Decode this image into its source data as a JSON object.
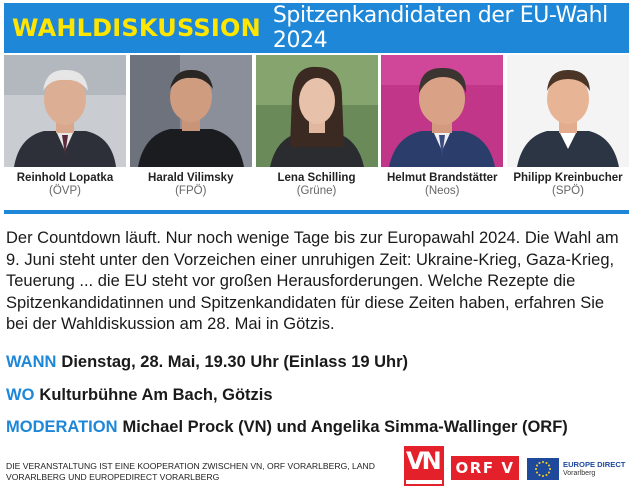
{
  "header": {
    "kicker": "WAHLDISKUSSION",
    "headline": "Spitzenkandidaten der EU-Wahl 2024",
    "bg_color": "#1e87d8",
    "kicker_color": "#ffe600"
  },
  "candidates": [
    {
      "name": "Reinhold Lopatka",
      "party": "(ÖVP)"
    },
    {
      "name": "Harald Vilimsky",
      "party": "(FPÖ)"
    },
    {
      "name": "Lena Schilling",
      "party": "(Grüne)"
    },
    {
      "name": "Helmut Brandstätter",
      "party": "(Neos)"
    },
    {
      "name": "Philipp Kreinbucher",
      "party": "(SPÖ)"
    }
  ],
  "intro": "Der Countdown läuft. Nur noch wenige Tage bis zur Europawahl 2024. Die Wahl am 9. Juni steht unter den Vorzeichen einer unruhigen Zeit: Ukraine-Krieg, Gaza-Krieg, Teuerung ... die EU steht vor großen Herausforderungen. Welche Rezepte die Spitzenkandidatinnen und Spitzenkandidaten für diese Zeiten haben, erfahren Sie bei der Wahldiskussion am 28. Mai in Götzis.",
  "details": {
    "when_label": "WANN",
    "when_value": "Dienstag, 28. Mai, 19.30 Uhr (Einlass 19 Uhr)",
    "where_label": "WO",
    "where_value": "Kulturbühne Am Bach, Götzis",
    "moderation_label": "MODERATION",
    "moderation_value": "Michael Prock (VN) und Angelika Simma-Wallinger (ORF)"
  },
  "footer": {
    "note": "Die Veranstaltung ist eine Kooperation zwischen VN, ORF Vorarlberg, Land Vorarlberg und Europedirect Vorarlberg",
    "orf_logo": "ORF V",
    "eu_direct_title": "EUROPE DIRECT",
    "eu_direct_sub": "Vorarlberg"
  }
}
